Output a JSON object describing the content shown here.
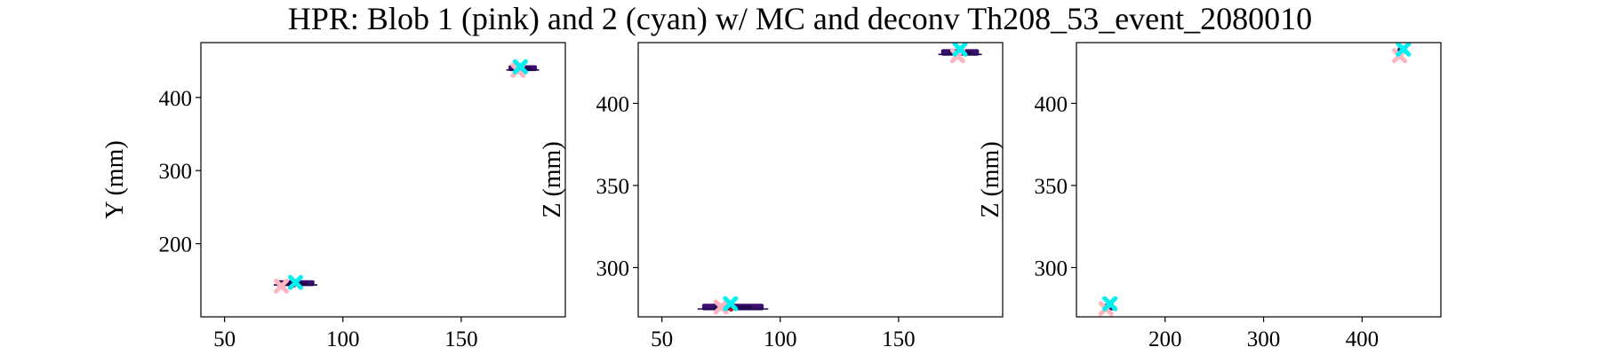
{
  "chart_data": {
    "title": "HPR: Blob 1 (pink) and 2 (cyan) w/ MC and deconv Th208_53_event_2080010",
    "colors": {
      "blob1": "#ffb6c1",
      "blob2": "#00f0f0",
      "track": "#3b0f70",
      "track_alt": "#1f0a4a",
      "mc": "#cc0000"
    },
    "panels": [
      {
        "type": "scatter",
        "xlabel": "",
        "ylabel": "Y (mm)",
        "xlim": [
          40,
          194
        ],
        "ylim": [
          100,
          475
        ],
        "xticks": [
          50,
          100,
          150
        ],
        "yticks": [
          200,
          300,
          400
        ],
        "track_clusters": [
          {
            "x": 80,
            "y": 146,
            "dx": 8,
            "dy": 4
          },
          {
            "x": 176,
            "y": 440,
            "dx": 6,
            "dy": 4
          }
        ],
        "blob1": [
          {
            "x": 74,
            "y": 142
          },
          {
            "x": 174,
            "y": 437
          }
        ],
        "blob2": [
          {
            "x": 80,
            "y": 147
          },
          {
            "x": 175,
            "y": 442
          }
        ]
      },
      {
        "type": "scatter",
        "xlabel": "",
        "ylabel": "Z (mm)",
        "xlim": [
          40,
          194
        ],
        "ylim": [
          270,
          437
        ],
        "xticks": [
          50,
          100,
          150
        ],
        "yticks": [
          300,
          350,
          400
        ],
        "track_clusters": [
          {
            "x": 80,
            "y": 276,
            "dx": 13,
            "dy": 2
          },
          {
            "x": 176,
            "y": 431,
            "dx": 8,
            "dy": 2
          }
        ],
        "blob1": [
          {
            "x": 75,
            "y": 276
          },
          {
            "x": 175,
            "y": 429
          }
        ],
        "blob2": [
          {
            "x": 79,
            "y": 278
          },
          {
            "x": 176,
            "y": 433
          }
        ]
      },
      {
        "type": "scatter",
        "xlabel": "",
        "ylabel": "Z (mm)",
        "xlim": [
          110,
          480
        ],
        "ylim": [
          270,
          437
        ],
        "xticks": [
          200,
          300,
          400
        ],
        "yticks": [
          300,
          350,
          400
        ],
        "track_clusters": [
          {
            "x": 143,
            "y": 276,
            "dx": 5,
            "dy": 2
          },
          {
            "x": 440,
            "y": 432,
            "dx": 4,
            "dy": 2
          }
        ],
        "blob1": [
          {
            "x": 140,
            "y": 275
          },
          {
            "x": 438,
            "y": 429
          }
        ],
        "blob2": [
          {
            "x": 144,
            "y": 278
          },
          {
            "x": 442,
            "y": 433
          }
        ]
      }
    ]
  }
}
